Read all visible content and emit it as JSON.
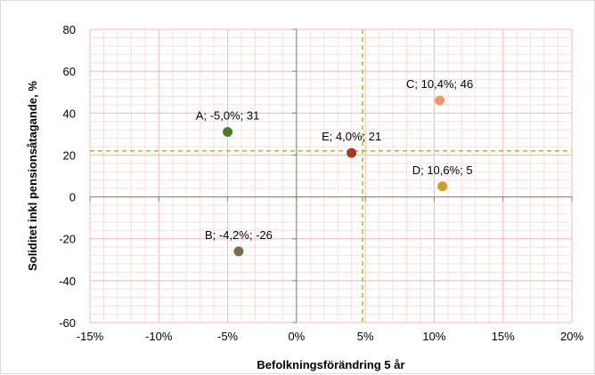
{
  "chart_data": {
    "type": "scatter",
    "title": "",
    "xlabel": "Befolkningsförändring 5 år",
    "ylabel": "Soliditet inkl pensionsåtagande, %",
    "xlim": [
      -15,
      20
    ],
    "ylim": [
      -60,
      80
    ],
    "x_ticks": [
      -15,
      -10,
      -5,
      0,
      5,
      10,
      15,
      20
    ],
    "x_tick_labels": [
      "-15%",
      "-10%",
      "-5%",
      "0%",
      "5%",
      "10%",
      "15%",
      "20%"
    ],
    "y_ticks": [
      -60,
      -40,
      -20,
      0,
      20,
      40,
      60,
      80
    ],
    "y_tick_labels": [
      "-60",
      "-40",
      "-20",
      "0",
      "20",
      "40",
      "60",
      "80"
    ],
    "grid": true,
    "reference_lines": {
      "x": 4.8,
      "y": 22,
      "color": "#99cc00",
      "style": "dashed"
    },
    "points": [
      {
        "label": "A; -5,0%; 31",
        "x": -5.0,
        "y": 31,
        "color": "#4f7a28"
      },
      {
        "label": "B; -4,2%; -26",
        "x": -4.2,
        "y": -26,
        "color": "#7a6d4f"
      },
      {
        "label": "C; 10,4%; 46",
        "x": 10.4,
        "y": 46,
        "color": "#f2956b"
      },
      {
        "label": "D; 10,6%; 5",
        "x": 10.6,
        "y": 5,
        "color": "#c8a02a"
      },
      {
        "label": "E; 4,0%; 21",
        "x": 4.0,
        "y": 21,
        "color": "#a33b1f"
      }
    ],
    "colors": {
      "grid_major": "#f2b8b8",
      "grid_minor": "#f9dede",
      "axis": "#808080"
    }
  }
}
